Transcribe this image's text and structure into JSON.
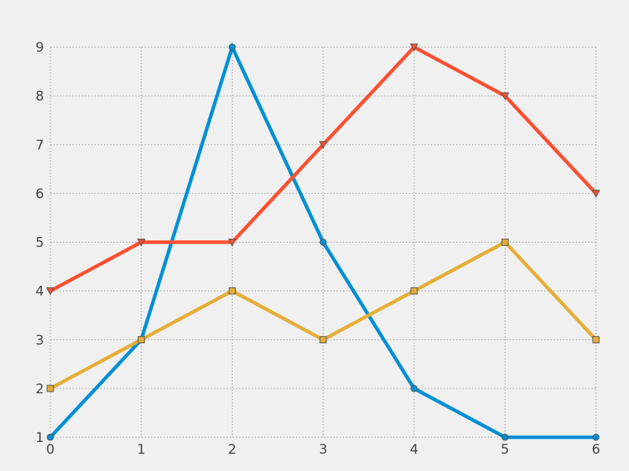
{
  "chart_data": {
    "type": "line",
    "title": "",
    "xlabel": "",
    "ylabel": "",
    "x": [
      0,
      1,
      2,
      3,
      4,
      5,
      6
    ],
    "xlim": [
      0,
      6
    ],
    "ylim": [
      1,
      9
    ],
    "xticks": [
      "0",
      "1",
      "2",
      "3",
      "4",
      "5",
      "6"
    ],
    "yticks": [
      "1",
      "2",
      "3",
      "4",
      "5",
      "6",
      "7",
      "8",
      "9"
    ],
    "grid": true,
    "legend": "none",
    "series": [
      {
        "values": [
          1,
          3,
          9,
          5,
          2,
          1,
          1
        ],
        "color": "#008fd5",
        "marker": "circle"
      },
      {
        "values": [
          4,
          5,
          5,
          7,
          9,
          8,
          6
        ],
        "color": "#fc4f30",
        "marker": "triangle-down"
      },
      {
        "values": [
          2,
          3,
          4,
          3,
          4,
          5,
          3
        ],
        "color": "#e5ae38",
        "marker": "square"
      }
    ]
  }
}
